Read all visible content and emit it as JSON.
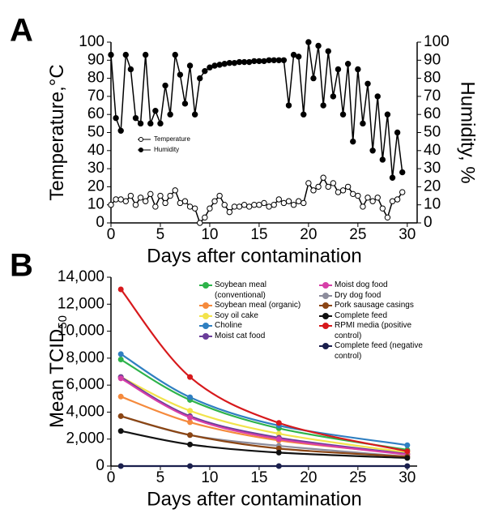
{
  "chart_data": [
    {
      "type": "line",
      "panel": "A",
      "x_label": "Days after contamination",
      "y_label": "Temperature,°C",
      "y2_label": "Humidity, %",
      "x": [
        0,
        0.5,
        1,
        1.5,
        2,
        2.5,
        3,
        3.5,
        4,
        4.5,
        5,
        5.5,
        6,
        6.5,
        7,
        7.5,
        8,
        8.5,
        9,
        9.5,
        10,
        10.5,
        11,
        11.5,
        12,
        12.5,
        13,
        13.5,
        14,
        14.5,
        15,
        15.5,
        16,
        16.5,
        17,
        17.5,
        18,
        18.5,
        19,
        19.5,
        20,
        20.5,
        21,
        21.5,
        22,
        22.5,
        23,
        23.5,
        24,
        24.5,
        25,
        25.5,
        26,
        26.5,
        27,
        27.5,
        28,
        28.5,
        29,
        29.5
      ],
      "series": [
        {
          "name": "Temperature",
          "color": "#000000",
          "marker_fill": "#ffffff",
          "axis": "y",
          "values": [
            10,
            13,
            13,
            12,
            15,
            10,
            14,
            12,
            16,
            9,
            15,
            11,
            15,
            18,
            11,
            12,
            9,
            8,
            0,
            3,
            8,
            12,
            15,
            10,
            6,
            9,
            9,
            10,
            9,
            10,
            10,
            11,
            9,
            10,
            13,
            11,
            12,
            10,
            12,
            11,
            22,
            18,
            20,
            25,
            20,
            22,
            17,
            18,
            20,
            16,
            15,
            9,
            14,
            12,
            14,
            8,
            3,
            12,
            13,
            17
          ]
        },
        {
          "name": "Humidity",
          "color": "#000000",
          "marker_fill": "#000000",
          "axis": "y2",
          "values": [
            93,
            58,
            51,
            93,
            85,
            58,
            55,
            93,
            55,
            62,
            55,
            76,
            60,
            93,
            82,
            66,
            87,
            60,
            80,
            84,
            86,
            87,
            87.5,
            88,
            88.5,
            88.5,
            89,
            89,
            89,
            89.5,
            89.5,
            89.5,
            90,
            90,
            90,
            90,
            65,
            93,
            92,
            60,
            100,
            80,
            98,
            65,
            95,
            70,
            85,
            60,
            88,
            45,
            85,
            55,
            77,
            40,
            70,
            35,
            60,
            25,
            50,
            28
          ]
        }
      ],
      "xlim": [
        0,
        31
      ],
      "xticks": [
        0,
        5,
        10,
        15,
        20,
        25,
        30
      ],
      "ylim": [
        0,
        100
      ],
      "yticks": [
        0,
        10,
        20,
        30,
        40,
        50,
        60,
        70,
        80,
        90,
        100
      ],
      "y2lim": [
        0,
        100
      ],
      "y2ticks": [
        0,
        10,
        20,
        30,
        40,
        50,
        60,
        70,
        80,
        90,
        100
      ],
      "legend": "upper left"
    },
    {
      "type": "smooth-line",
      "panel": "B",
      "x_label": "Days after contamination",
      "y_label": "Mean TCID",
      "y_label_sub": "50",
      "x": [
        1,
        8,
        17,
        30
      ],
      "series": [
        {
          "name": "Soybean meal (conventional)",
          "color": "#2db34a",
          "values": [
            7900,
            4900,
            2800,
            1200
          ]
        },
        {
          "name": "Soybean meal (organic)",
          "color": "#f58a3c",
          "values": [
            5150,
            3250,
            1900,
            900
          ]
        },
        {
          "name": "Soy oil cake",
          "color": "#f2e34c",
          "values": [
            6600,
            4100,
            2400,
            1000
          ]
        },
        {
          "name": "Choline",
          "color": "#2f7fc1",
          "values": [
            8300,
            5100,
            3000,
            1550
          ]
        },
        {
          "name": "Moist cat food",
          "color": "#6a3d9a",
          "values": [
            6600,
            3700,
            2100,
            900
          ]
        },
        {
          "name": "Moist dog food",
          "color": "#d63fa8",
          "values": [
            6500,
            3600,
            2000,
            850
          ]
        },
        {
          "name": "Dry dog food",
          "color": "#8c8c9c",
          "values": [
            3700,
            2300,
            1500,
            700
          ]
        },
        {
          "name": "Pork sausage casings",
          "color": "#8b4513",
          "values": [
            3700,
            2300,
            1300,
            700
          ]
        },
        {
          "name": "Complete feed",
          "color": "#111111",
          "values": [
            2600,
            1600,
            1000,
            600
          ]
        },
        {
          "name": "RPMI media (positive control)",
          "color": "#d7191c",
          "values": [
            13100,
            6600,
            3200,
            1100
          ]
        },
        {
          "name": "Complete feed (negative control)",
          "color": "#1a1f4d",
          "values": [
            0,
            0,
            0,
            0
          ]
        }
      ],
      "xlim": [
        0,
        31
      ],
      "xticks": [
        0,
        5,
        10,
        15,
        20,
        25,
        30
      ],
      "ylim": [
        0,
        14000
      ],
      "yticks": [
        0,
        {
          "value": 2000,
          "label": "2,000"
        },
        {
          "value": 4000,
          "label": "4,000"
        },
        {
          "value": 6000,
          "label": "6,000"
        },
        {
          "value": 8000,
          "label": "8,000"
        },
        {
          "value": 10000,
          "label": "10,000"
        },
        {
          "value": 12000,
          "label": "12,000"
        },
        {
          "value": 14000,
          "label": "14,000"
        }
      ],
      "legend": "upper right"
    }
  ]
}
